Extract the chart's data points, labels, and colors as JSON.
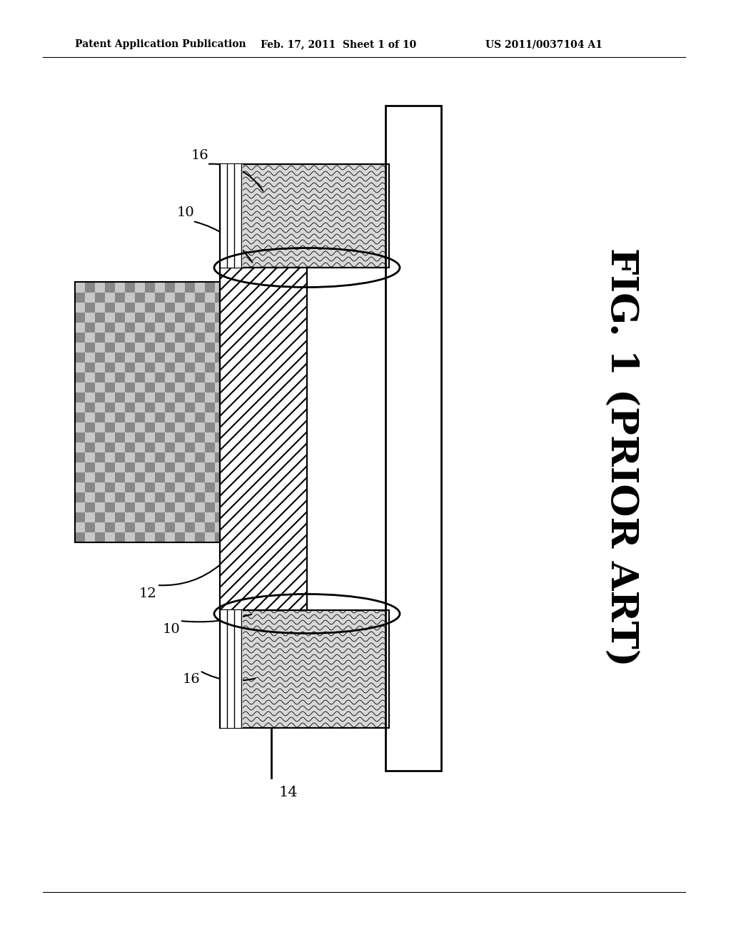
{
  "bg_color": "#ffffff",
  "header_text1": "Patent Application Publication",
  "header_text2": "Feb. 17, 2011  Sheet 1 of 10",
  "header_text3": "US 2011/0037104 A1",
  "fig_label": "FIG. 1 (PRIOR ART)",
  "labels": {
    "10_top": "10",
    "10_bot": "10",
    "12": "12",
    "14": "14",
    "16_top": "16",
    "16_bot": "16"
  }
}
